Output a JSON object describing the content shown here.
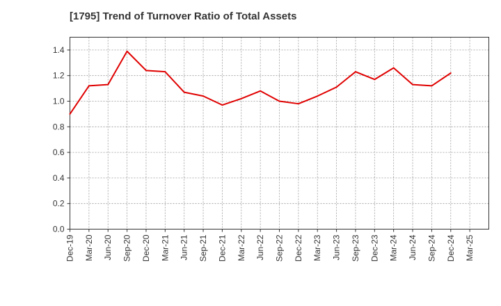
{
  "chart_data": {
    "type": "line",
    "title": "[1795]  Trend of Turnover Ratio of Total Assets",
    "xlabel": "",
    "ylabel": "",
    "ylim": [
      0.0,
      1.5
    ],
    "yticks": [
      "0.0",
      "0.2",
      "0.4",
      "0.6",
      "0.8",
      "1.0",
      "1.2",
      "1.4"
    ],
    "xticks": [
      "Dec-19",
      "Mar-20",
      "Jun-20",
      "Sep-20",
      "Dec-20",
      "Mar-21",
      "Jun-21",
      "Sep-21",
      "Dec-21",
      "Mar-22",
      "Jun-22",
      "Sep-22",
      "Dec-22",
      "Mar-23",
      "Jun-23",
      "Sep-23",
      "Dec-23",
      "Mar-24",
      "Jun-24",
      "Sep-24",
      "Dec-24",
      "Mar-25"
    ],
    "grid": true,
    "series": [
      {
        "color": "#e00000",
        "x": [
          "Dec-19",
          "Mar-20",
          "Jun-20",
          "Sep-20",
          "Dec-20",
          "Mar-21",
          "Jun-21",
          "Sep-21",
          "Dec-21",
          "Mar-22",
          "Jun-22",
          "Sep-22",
          "Dec-22",
          "Mar-23",
          "Jun-23",
          "Sep-23",
          "Dec-23",
          "Mar-24",
          "Jun-24",
          "Sep-24",
          "Dec-24"
        ],
        "values": [
          0.9,
          1.12,
          1.13,
          1.39,
          1.24,
          1.23,
          1.07,
          1.04,
          0.97,
          1.02,
          1.08,
          1.0,
          0.98,
          1.04,
          1.11,
          1.23,
          1.17,
          1.26,
          1.13,
          1.12,
          1.22
        ]
      }
    ]
  }
}
